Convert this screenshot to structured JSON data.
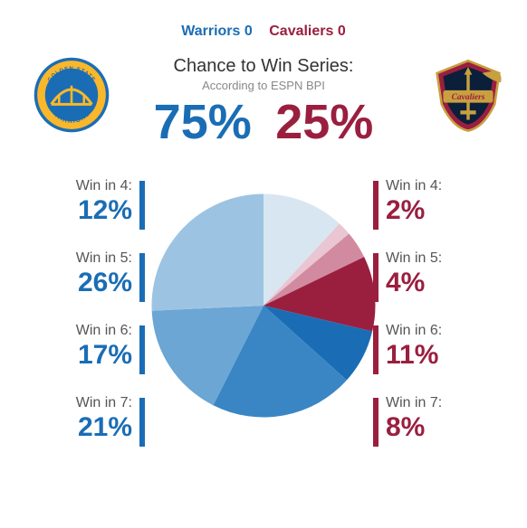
{
  "teams": {
    "left": {
      "name": "Warriors",
      "score": "0",
      "color": "#1a6db5",
      "pct": "75%"
    },
    "right": {
      "name": "Cavaliers",
      "score": "0",
      "color": "#9a1f3f",
      "pct": "25%"
    }
  },
  "chance": {
    "title": "Chance to Win Series:",
    "subtitle": "According to ESPN BPI"
  },
  "stats_left": [
    {
      "label": "Win in 4:",
      "value": "12%",
      "color": "#1a6db5"
    },
    {
      "label": "Win in 5:",
      "value": "26%",
      "color": "#1a6db5"
    },
    {
      "label": "Win in 6:",
      "value": "17%",
      "color": "#1a6db5"
    },
    {
      "label": "Win in 7:",
      "value": "21%",
      "color": "#1a6db5"
    }
  ],
  "stats_right": [
    {
      "label": "Win in 4:",
      "value": "2%",
      "color": "#9a1f3f"
    },
    {
      "label": "Win in 5:",
      "value": "4%",
      "color": "#9a1f3f"
    },
    {
      "label": "Win in 6:",
      "value": "11%",
      "color": "#9a1f3f"
    },
    {
      "label": "Win in 7:",
      "value": "8%",
      "color": "#9a1f3f"
    }
  ],
  "pie": {
    "type": "pie",
    "background_color": "#ffffff",
    "start_angle_deg": -90,
    "slices": [
      {
        "value": 12,
        "color": "#d8e6f1"
      },
      {
        "value": 2,
        "color": "#e9c6d2"
      },
      {
        "value": 4,
        "color": "#d28aa1"
      },
      {
        "value": 11,
        "color": "#9a1f3f"
      },
      {
        "value": 8,
        "color": "#1a6db5"
      },
      {
        "value": 21,
        "color": "#3a86c4"
      },
      {
        "value": 17,
        "color": "#6ba6d4"
      },
      {
        "value": 26,
        "color": "#9cc4e2"
      }
    ]
  },
  "logos": {
    "left": {
      "ring_outer": "#f9b72b",
      "ring_inner": "#1a6db5",
      "bridge": "#f9b72b",
      "text_top": "GOLDEN STATE",
      "text_bottom": "WARRIORS"
    },
    "right": {
      "shield": "#9a1f3f",
      "gold": "#c9a040",
      "navy": "#0b1f3a",
      "script": "Cavaliers"
    }
  }
}
